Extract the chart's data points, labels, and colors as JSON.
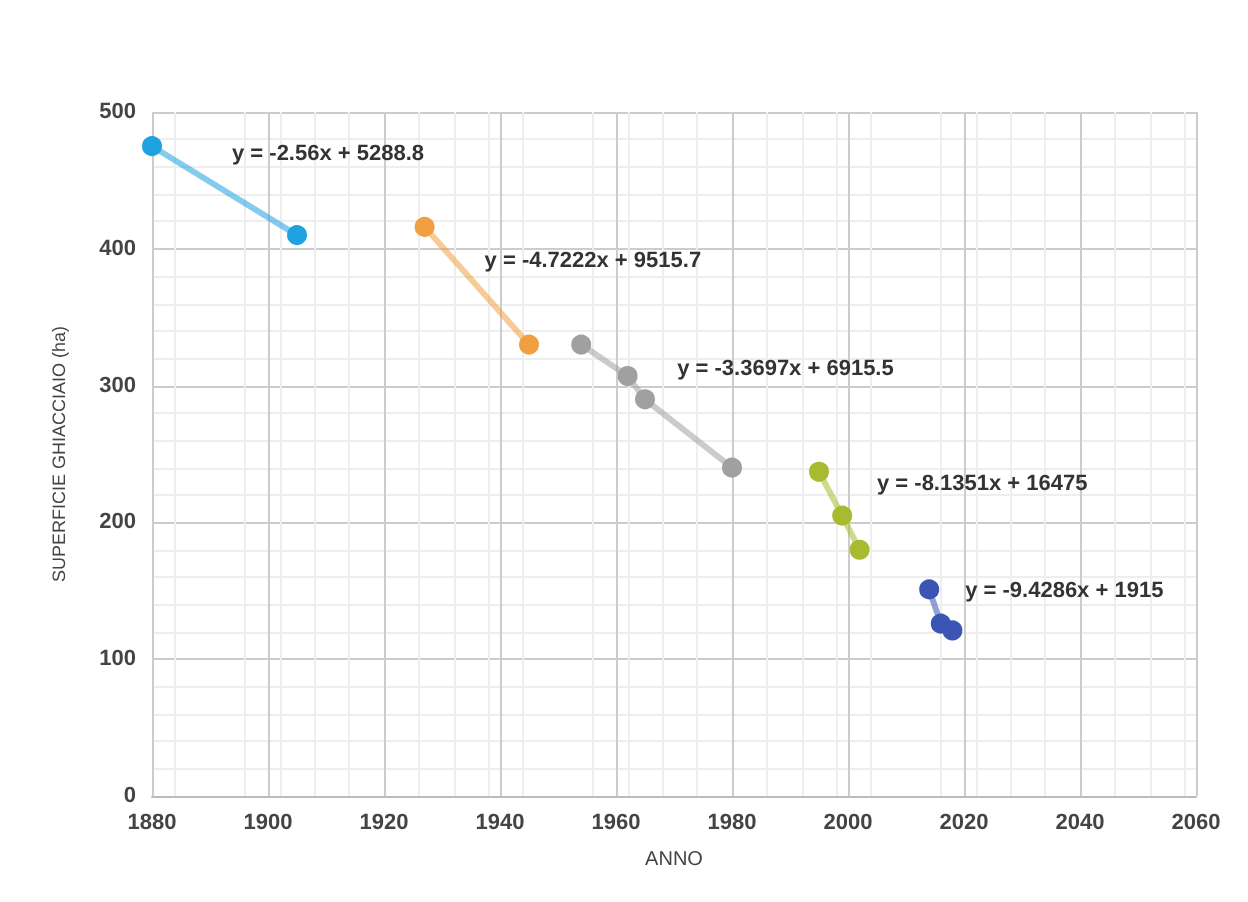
{
  "chart_data": {
    "type": "line",
    "xlabel": "ANNO",
    "ylabel": "SUPERFICIE GHIACCIAIO (ha)",
    "series": [
      {
        "color": "#1fa3e0",
        "x": [
          1880,
          1905
        ],
        "values": [
          475,
          410
        ]
      },
      {
        "color": "#f0a040",
        "x": [
          1927,
          1945
        ],
        "values": [
          416,
          330
        ]
      },
      {
        "color": "#a0a0a0",
        "x": [
          1954,
          1962,
          1965,
          1980
        ],
        "values": [
          330,
          307,
          290,
          240
        ]
      },
      {
        "color": "#a8bb30",
        "x": [
          1995,
          1999,
          2002
        ],
        "values": [
          237,
          205,
          180
        ]
      },
      {
        "color": "#3b55b5",
        "x": [
          2014,
          2016,
          2018
        ],
        "values": [
          151,
          126,
          121
        ]
      }
    ],
    "annotations": [
      "y = -2.56x + 5288.8",
      "y = -4.7222x + 9515.7",
      "y = -3.3697x + 6915.5",
      "y = -8.1351x + 16475",
      "y = -9.4286x + 1915"
    ],
    "xlim": [
      1880,
      2060
    ],
    "xticks": [
      1880,
      1900,
      1920,
      1940,
      1960,
      1980,
      2000,
      2020,
      2040,
      2060
    ],
    "ylim": [
      0,
      500
    ],
    "yticks": [
      0,
      100,
      200,
      300,
      400,
      500
    ],
    "grid": true,
    "marker": "circle",
    "line_style": "solid"
  }
}
